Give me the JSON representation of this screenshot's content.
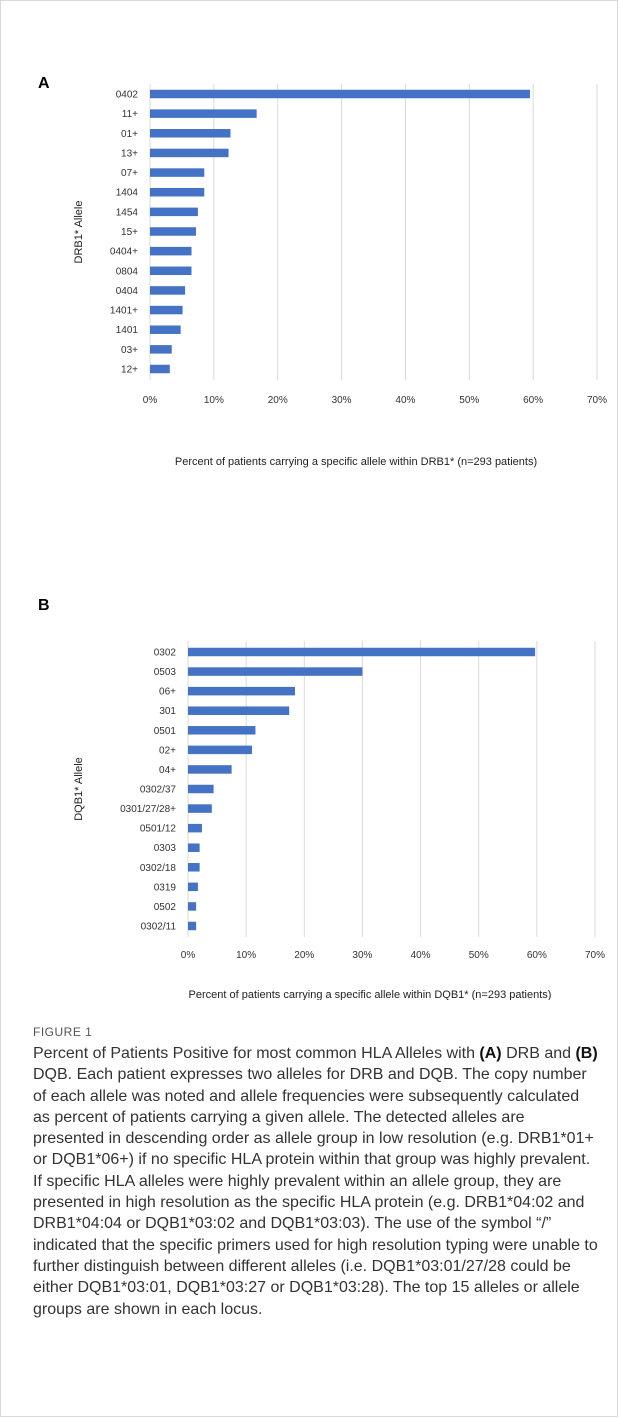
{
  "figure": {
    "label": "FIGURE 1",
    "caption_parts": [
      {
        "text": "Percent of Patients Positive for most common HLA Alleles with ",
        "bold": false
      },
      {
        "text": "(A)",
        "bold": true
      },
      {
        "text": " DRB and ",
        "bold": false
      },
      {
        "text": "(B)",
        "bold": true
      },
      {
        "text": " DQB. Each patient expresses two alleles for DRB and DQB. The copy number of each allele was noted and allele frequencies were subsequently calculated as percent of patients carrying a given allele. The detected alleles are presented in descending order as allele group in low resolution (e.g. DRB1*01+ or DQB1*06+) if no specific HLA protein within that group was highly prevalent. If specific HLA alleles were highly prevalent within an allele group, they are presented in high resolution as the specific HLA protein (e.g. DRB1*04:02 and DRB1*04:04 or DQB1*03:02 and DQB1*03:03). The use of the symbol “/” indicated that the specific primers used for high resolution typing were unable to further distinguish between different alleles (i.e. DQB1*03:01/27/28 could be either DQB1*03:01, DQB1*03:27 or DQB1*03:28). The top 15 alleles or allele groups are shown in each locus.",
        "bold": false
      }
    ]
  },
  "chart_data": [
    {
      "type": "bar",
      "orientation": "horizontal",
      "panel_letter": "A",
      "categories": [
        "0402",
        "11+",
        "01+",
        "13+",
        "07+",
        "1404",
        "1454",
        "15+",
        "0404+",
        "0804",
        "0404",
        "1401+",
        "1401",
        "03+",
        "12+"
      ],
      "values": [
        59.5,
        16.7,
        12.6,
        12.3,
        8.5,
        8.5,
        7.5,
        7.2,
        6.5,
        6.5,
        5.5,
        5.1,
        4.8,
        3.4,
        3.1
      ],
      "ylabel": "DRB1* Allele",
      "xlabel": "Percent of patients carrying a specific allele within DRB1*  (n=293 patients)",
      "xlim": [
        0,
        70
      ],
      "xticks": [
        "0%",
        "10%",
        "20%",
        "30%",
        "40%",
        "50%",
        "60%",
        "70%"
      ],
      "grid": true,
      "bar_color": "#4472c4"
    },
    {
      "type": "bar",
      "orientation": "horizontal",
      "panel_letter": "B",
      "categories": [
        "0302",
        "0503",
        "06+",
        "301",
        "0501",
        "02+",
        "04+",
        "0302/37",
        "0301/27/28+",
        "0501/12",
        "0303",
        "0302/18",
        "0319",
        "0502",
        "0302/11"
      ],
      "values": [
        59.7,
        30.0,
        18.4,
        17.4,
        11.6,
        11.0,
        7.5,
        4.4,
        4.1,
        2.4,
        2.0,
        2.0,
        1.7,
        1.4,
        1.4
      ],
      "ylabel": "DQB1* Allele",
      "xlabel": "Percent of patients carrying a specific allele within DQB1* (n=293 patients)",
      "xlim": [
        0,
        70
      ],
      "xticks": [
        "0%",
        "10%",
        "20%",
        "30%",
        "40%",
        "50%",
        "60%",
        "70%"
      ],
      "grid": true,
      "bar_color": "#4472c4"
    }
  ]
}
